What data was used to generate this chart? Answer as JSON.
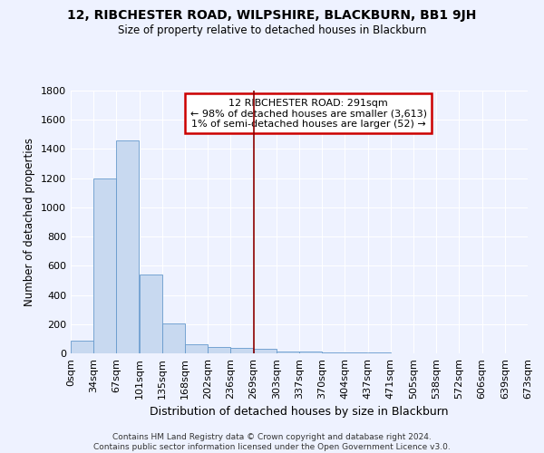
{
  "title": "12, RIBCHESTER ROAD, WILPSHIRE, BLACKBURN, BB1 9JH",
  "subtitle": "Size of property relative to detached houses in Blackburn",
  "xlabel": "Distribution of detached houses by size in Blackburn",
  "ylabel": "Number of detached properties",
  "footer_line1": "Contains HM Land Registry data © Crown copyright and database right 2024.",
  "footer_line2": "Contains public sector information licensed under the Open Government Licence v3.0.",
  "bin_labels": [
    "0sqm",
    "34sqm",
    "67sqm",
    "101sqm",
    "135sqm",
    "168sqm",
    "202sqm",
    "236sqm",
    "269sqm",
    "303sqm",
    "337sqm",
    "370sqm",
    "404sqm",
    "437sqm",
    "471sqm",
    "505sqm",
    "538sqm",
    "572sqm",
    "606sqm",
    "639sqm",
    "673sqm"
  ],
  "bar_values": [
    90,
    1200,
    1460,
    540,
    205,
    65,
    45,
    35,
    28,
    10,
    12,
    8,
    6,
    4,
    3,
    2,
    1,
    1,
    1,
    0
  ],
  "bar_color": "#c8d9f0",
  "bar_edge_color": "#6699cc",
  "property_line_color": "#8b0000",
  "property_line_bin": 8,
  "annotation_line0": "12 RIBCHESTER ROAD: 291sqm",
  "annotation_line1": "← 98% of detached houses are smaller (3,613)",
  "annotation_line2": "1% of semi-detached houses are larger (52) →",
  "box_edge_color": "#cc0000",
  "ylim": [
    0,
    1800
  ],
  "yticks": [
    0,
    200,
    400,
    600,
    800,
    1000,
    1200,
    1400,
    1600,
    1800
  ],
  "bg_color": "#eef2ff",
  "grid_color": "#ffffff",
  "bin_width": 34
}
